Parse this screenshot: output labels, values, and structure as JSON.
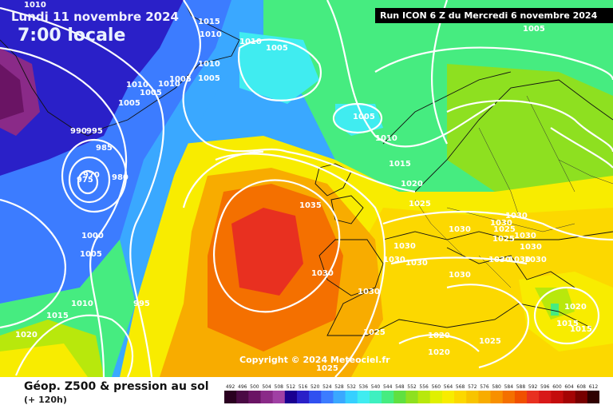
{
  "header": {
    "date": "Lundi 11 novembre 2024",
    "hour": "7:00 locale",
    "run": "Run ICON 6 Z du Mercredi 6 novembre 2024"
  },
  "copyright": "Copyright © 2024 Meteociel.fr",
  "footer": {
    "title": "Géop. Z500 & pression au sol",
    "subtitle": "(+ 120h)"
  },
  "legend": {
    "ticks": [
      "492",
      "496",
      "500",
      "504",
      "508",
      "512",
      "516",
      "520",
      "524",
      "528",
      "532",
      "536",
      "540",
      "544",
      "548",
      "552",
      "556",
      "560",
      "564",
      "568",
      "572",
      "576",
      "580",
      "584",
      "588",
      "592",
      "596",
      "600",
      "604",
      "608",
      "612"
    ],
    "colors": [
      "#2a0020",
      "#4a0a44",
      "#6a1464",
      "#8a2a88",
      "#a040a4",
      "#1a0090",
      "#2a20c8",
      "#3050f0",
      "#3c7cff",
      "#3aa8ff",
      "#36d0ff",
      "#40ecf0",
      "#3ef0c0",
      "#46ec80",
      "#60e040",
      "#8ee020",
      "#b8e80c",
      "#e0f000",
      "#f8ec00",
      "#fcd800",
      "#f8c400",
      "#f8ac00",
      "#f89000",
      "#f47000",
      "#f05000",
      "#e83020",
      "#d81818",
      "#c40c0c",
      "#a40404",
      "#780000",
      "#300000"
    ]
  },
  "colors": {
    "z536": "#3aa8ff",
    "z544": "#40ecf0",
    "z552": "#46ec80",
    "z560": "#b8e80c",
    "z568": "#f8ec00",
    "z576": "#f8c400",
    "z580": "#f8ac00",
    "z584": "#f47000",
    "z588": "#f05000",
    "z592": "#e83020",
    "z520": "#2a20c8",
    "z528": "#3c7cff"
  },
  "pressure_labels": [
    "1010",
    "1015",
    "1010",
    "1010",
    "1005",
    "1010",
    "1005",
    "1005",
    "1010",
    "1010",
    "1005",
    "1005",
    "1005",
    "1005",
    "990",
    "995",
    "985",
    "975",
    "970",
    "980",
    "1010",
    "1015",
    "1020",
    "1025",
    "1035",
    "1030",
    "1030",
    "1030",
    "1025",
    "1030",
    "1025",
    "1030",
    "1030",
    "1030",
    "1030",
    "1030",
    "1030",
    "1030",
    "1030",
    "1030",
    "1000",
    "1005",
    "1010",
    "995",
    "1015",
    "1020",
    "1030",
    "1025",
    "1025",
    "1020",
    "1020",
    "1025",
    "1020",
    "1015",
    "1015",
    "1000",
    "1005"
  ]
}
